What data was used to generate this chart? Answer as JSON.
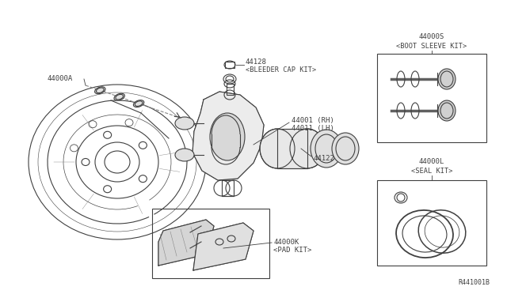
{
  "bg_color": "#ffffff",
  "line_color": "#404040",
  "ref_number": "R441001B",
  "fig_w": 6.4,
  "fig_h": 3.72,
  "dpi": 100,
  "label_44000A": "44000A",
  "label_44128_l1": "44128",
  "label_44128_l2": "<BLEEDER CAP KIT>",
  "label_44001_l1": "44001 (RH)",
  "label_44001_l2": "44011 (LH)",
  "label_44122": "44122",
  "label_44000K_l1": "44000K",
  "label_44000K_l2": "<PAD KIT>",
  "label_44000S_l1": "44000S",
  "label_44000S_l2": "<BOOT SLEEVE KIT>",
  "label_44000L_l1": "44000L",
  "label_44000L_l2": "<SEAL KIT>"
}
